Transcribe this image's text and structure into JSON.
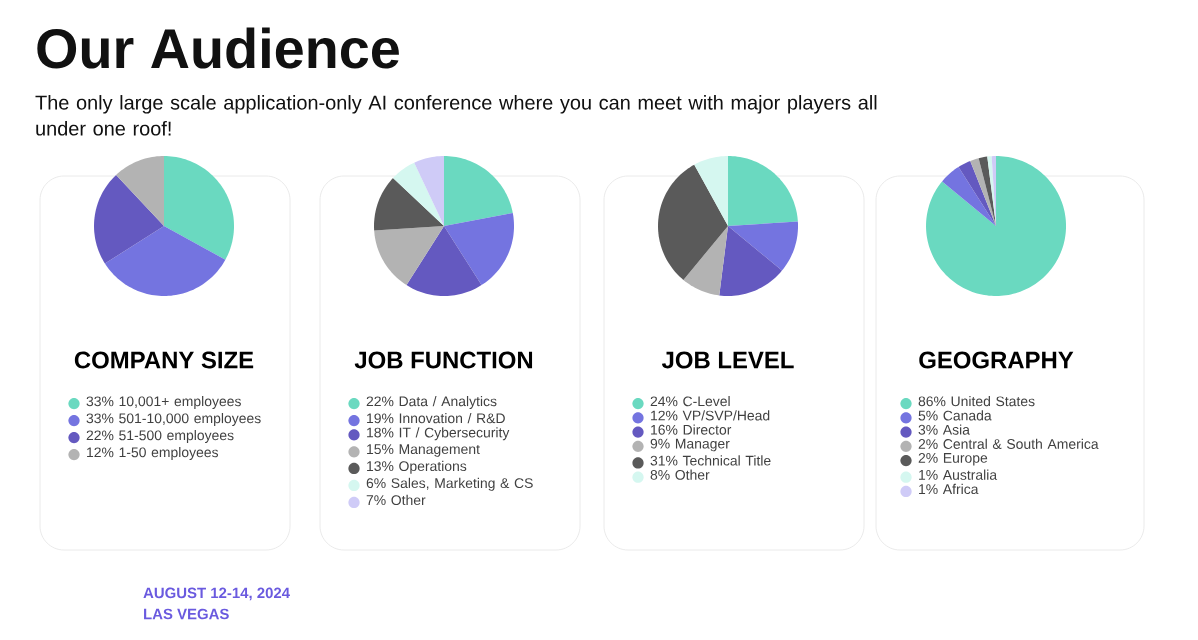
{
  "chart_data": [
    {
      "type": "pie",
      "title": "COMPANY SIZE",
      "legend": "bottom",
      "annotations": [
        "Our Audience",
        "The only large scale application-only AI conference where you can meet with major players all under one roof!",
        "AUGUST 12-14, 2024",
        "LAS VEGAS"
      ],
      "categories": [
        "33% 10,001+ employees",
        "33% 501-10,000 employees",
        "22% 51-500 employees",
        "12% 1-50 employees"
      ],
      "values": [
        33,
        33,
        22,
        12
      ],
      "colors": [
        "#6ad9c0",
        "#7474e0",
        "#6459c0",
        "#b3b3b3"
      ]
    },
    {
      "type": "pie",
      "title": "JOB FUNCTION",
      "legend": "bottom",
      "categories": [
        "22% Data / Analytics",
        "19% Innovation / R&D",
        "18% IT / Cybersecurity",
        "15% Management",
        "13% Operations",
        "6% Sales, Marketing & CS",
        "7% Other"
      ],
      "values": [
        22,
        19,
        18,
        15,
        13,
        6,
        7
      ],
      "colors": [
        "#6ad9c0",
        "#7474e0",
        "#6459c0",
        "#b3b3b3",
        "#5a5a5a",
        "#d5f7f0",
        "#cfcbf7"
      ]
    },
    {
      "type": "pie",
      "title": "JOB LEVEL",
      "legend": "bottom",
      "categories": [
        "24% C-Level",
        "12% VP/SVP/Head",
        "16% Director",
        "9% Manager",
        "31% Technical Title",
        "8% Other"
      ],
      "values": [
        24,
        12,
        16,
        9,
        31,
        8
      ],
      "colors": [
        "#6ad9c0",
        "#7474e0",
        "#6459c0",
        "#b3b3b3",
        "#5a5a5a",
        "#d5f7f0"
      ]
    },
    {
      "type": "pie",
      "title": "GEOGRAPHY",
      "legend": "bottom",
      "categories": [
        "86% United States",
        "5% Canada",
        "3% Asia",
        "2% Central & South America",
        "2% Europe",
        "1% Australia",
        "1% Africa"
      ],
      "values": [
        86,
        5,
        3,
        2,
        2,
        1,
        1
      ],
      "colors": [
        "#6ad9c0",
        "#7474e0",
        "#6459c0",
        "#b3b3b3",
        "#5a5a5a",
        "#d5f7f0",
        "#cfcbf7"
      ]
    }
  ]
}
